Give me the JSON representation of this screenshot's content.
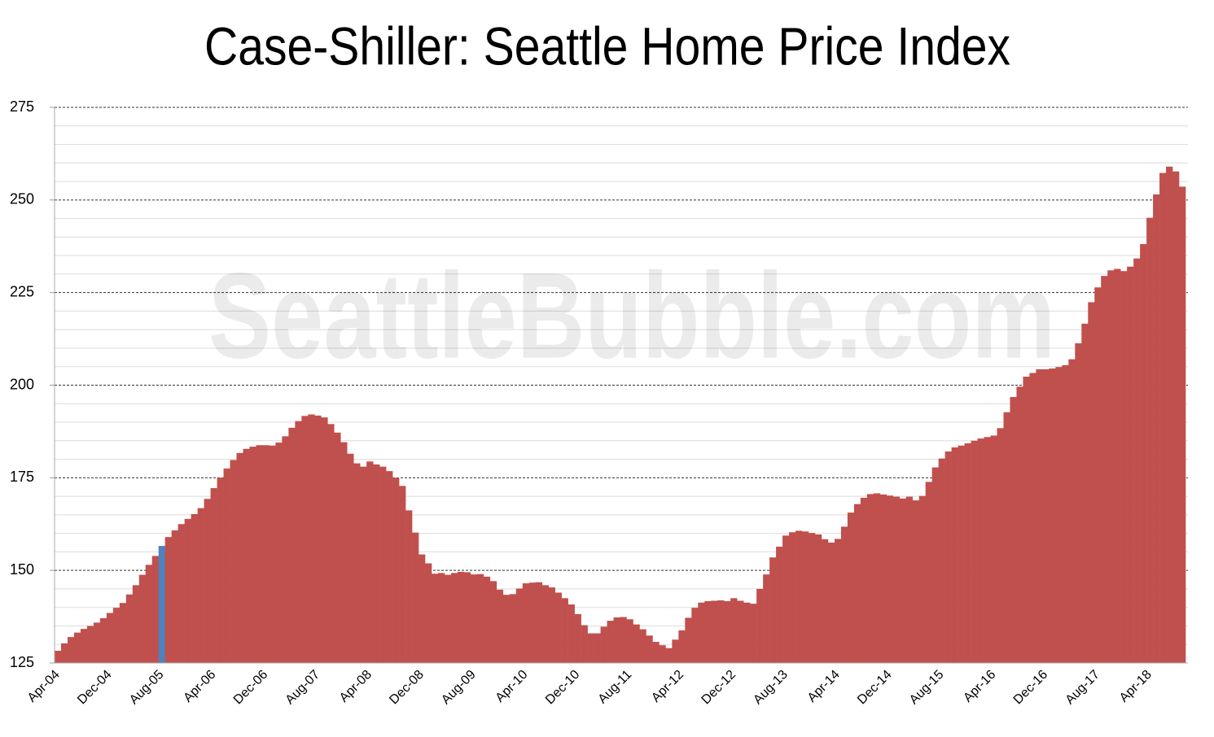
{
  "chart_data": {
    "type": "bar",
    "title": "Case-Shiller: Seattle Home Price Index",
    "watermark": "SeattleBubble.com",
    "categories": [
      "Apr-04",
      null,
      null,
      null,
      null,
      null,
      null,
      null,
      "Dec-04",
      null,
      null,
      null,
      null,
      null,
      null,
      null,
      "Aug-05",
      null,
      null,
      null,
      null,
      null,
      null,
      null,
      "Apr-06",
      null,
      null,
      null,
      null,
      null,
      null,
      null,
      "Dec-06",
      null,
      null,
      null,
      null,
      null,
      null,
      null,
      "Aug-07",
      null,
      null,
      null,
      null,
      null,
      null,
      null,
      "Apr-08",
      null,
      null,
      null,
      null,
      null,
      null,
      null,
      "Dec-08",
      null,
      null,
      null,
      null,
      null,
      null,
      null,
      "Aug-09",
      null,
      null,
      null,
      null,
      null,
      null,
      null,
      "Apr-10",
      null,
      null,
      null,
      null,
      null,
      null,
      null,
      "Dec-10",
      null,
      null,
      null,
      null,
      null,
      null,
      null,
      "Aug-11",
      null,
      null,
      null,
      null,
      null,
      null,
      null,
      "Apr-12",
      null,
      null,
      null,
      null,
      null,
      null,
      null,
      "Dec-12",
      null,
      null,
      null,
      null,
      null,
      null,
      null,
      "Aug-13",
      null,
      null,
      null,
      null,
      null,
      null,
      null,
      "Apr-14",
      null,
      null,
      null,
      null,
      null,
      null,
      null,
      "Dec-14",
      null,
      null,
      null,
      null,
      null,
      null,
      null,
      "Aug-15",
      null,
      null,
      null,
      null,
      null,
      null,
      null,
      "Apr-16",
      null,
      null,
      null,
      null,
      null,
      null,
      null,
      "Dec-16",
      null,
      null,
      null,
      null,
      null,
      null,
      null,
      "Aug-17",
      null,
      null,
      null,
      null,
      null,
      null,
      null,
      "Apr-18",
      null,
      null,
      null,
      null,
      null
    ],
    "values": [
      128.3,
      130.3,
      132,
      133.2,
      134.2,
      135,
      135.9,
      137.1,
      138.5,
      139.9,
      141.2,
      143.5,
      146,
      148.8,
      151.5,
      153.9,
      156.6,
      159,
      160.8,
      162.5,
      163.9,
      165.2,
      166.8,
      169.3,
      172.2,
      175,
      177.5,
      179.8,
      181.7,
      182.8,
      183.4,
      183.8,
      183.8,
      183.7,
      184.5,
      186.2,
      188.5,
      190.3,
      191.7,
      192.1,
      191.8,
      191.3,
      189.5,
      187.2,
      184.6,
      181.5,
      178.9,
      178,
      179.4,
      178.6,
      178,
      176.8,
      175,
      172.8,
      166.2,
      160.2,
      154.3,
      151.9,
      149.1,
      149.3,
      148.8,
      149.3,
      149.6,
      149.5,
      148.9,
      149,
      148.3,
      147.1,
      144.8,
      143.4,
      143.6,
      145.1,
      146.5,
      146.7,
      146.8,
      146,
      145.4,
      144,
      142.5,
      140.8,
      138.2,
      135.2,
      133,
      133,
      134.8,
      136.4,
      137.3,
      137.4,
      136.8,
      135.4,
      134.1,
      132.4,
      130.7,
      129.8,
      129,
      131.3,
      133.8,
      137.2,
      139.9,
      141.3,
      141.7,
      141.8,
      141.9,
      141.7,
      142.5,
      141.8,
      141.3,
      141,
      145,
      148.9,
      153.5,
      156.4,
      159.4,
      160.3,
      160.7,
      160.5,
      160.1,
      159.7,
      158.4,
      157.5,
      158.5,
      161.8,
      165.6,
      167.9,
      169.6,
      170.6,
      170.8,
      170.5,
      170.2,
      169.9,
      169.4,
      169.9,
      168.9,
      170.1,
      173.9,
      177.8,
      180.2,
      182.1,
      183.2,
      183.7,
      184.3,
      185,
      185.6,
      186,
      186.4,
      188.4,
      192.7,
      196.8,
      199.6,
      202.3,
      203.3,
      204.3,
      204.3,
      204.5,
      204.9,
      205.4,
      207,
      211.3,
      216.6,
      222.4,
      226.4,
      229.5,
      231,
      231.4,
      230.8,
      232,
      234.2,
      238.1,
      245.2,
      251.5,
      257.3,
      259,
      257.7,
      253.6
    ],
    "color": "#c0504d",
    "highlight": {
      "index": 16,
      "color": "#4f81bd"
    },
    "ylim": [
      125,
      275
    ],
    "yticks": [
      125,
      150,
      175,
      200,
      225,
      250,
      275
    ],
    "minor_yticks": [
      130,
      135,
      140,
      145,
      155,
      160,
      165,
      170,
      180,
      185,
      190,
      195,
      205,
      210,
      215,
      220,
      230,
      235,
      240,
      245,
      255,
      260,
      265,
      270
    ],
    "grid": true
  }
}
